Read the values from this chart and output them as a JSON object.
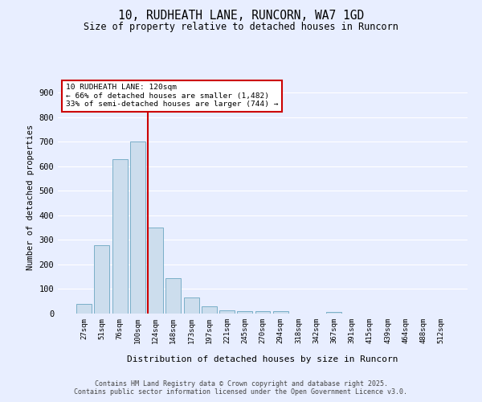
{
  "title_line1": "10, RUDHEATH LANE, RUNCORN, WA7 1GD",
  "title_line2": "Size of property relative to detached houses in Runcorn",
  "xlabel": "Distribution of detached houses by size in Runcorn",
  "ylabel": "Number of detached properties",
  "categories": [
    "27sqm",
    "51sqm",
    "76sqm",
    "100sqm",
    "124sqm",
    "148sqm",
    "173sqm",
    "197sqm",
    "221sqm",
    "245sqm",
    "270sqm",
    "294sqm",
    "318sqm",
    "342sqm",
    "367sqm",
    "391sqm",
    "415sqm",
    "439sqm",
    "464sqm",
    "488sqm",
    "512sqm"
  ],
  "values": [
    40,
    280,
    630,
    700,
    350,
    145,
    65,
    30,
    12,
    10,
    10,
    10,
    0,
    0,
    5,
    0,
    0,
    0,
    0,
    0,
    0
  ],
  "bar_color": "#ccdded",
  "bar_edge_color": "#7aafc8",
  "vline_color": "#cc0000",
  "annotation_title": "10 RUDHEATH LANE: 120sqm",
  "annotation_line2": "← 66% of detached houses are smaller (1,482)",
  "annotation_line3": "33% of semi-detached houses are larger (744) →",
  "annotation_box_color": "#cc0000",
  "annotation_bg": "#ffffff",
  "ylim": [
    0,
    950
  ],
  "yticks": [
    0,
    100,
    200,
    300,
    400,
    500,
    600,
    700,
    800,
    900
  ],
  "footer_line1": "Contains HM Land Registry data © Crown copyright and database right 2025.",
  "footer_line2": "Contains public sector information licensed under the Open Government Licence v3.0.",
  "bg_color": "#e8eeff",
  "grid_color": "#ffffff"
}
